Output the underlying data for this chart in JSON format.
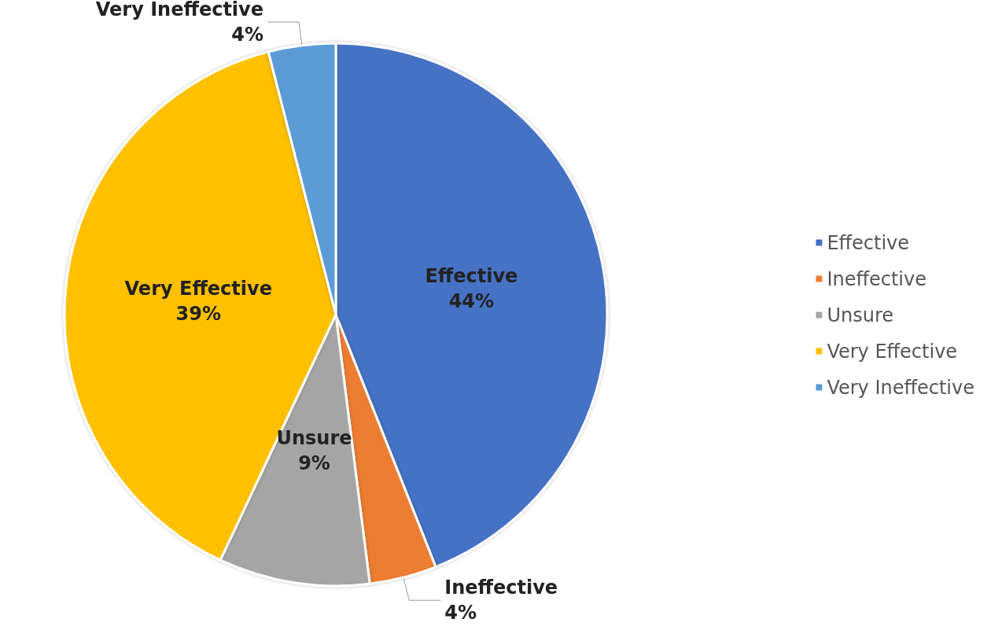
{
  "chart_data": {
    "type": "pie",
    "categories": [
      "Effective",
      "Ineffective",
      "Unsure",
      "Very Effective",
      "Very Ineffective"
    ],
    "values": [
      44,
      4,
      9,
      39,
      4
    ],
    "value_labels": [
      "44%",
      "4%",
      "9%",
      "39%",
      "4%"
    ],
    "colors": [
      "#4472c4",
      "#ed7d31",
      "#a5a5a5",
      "#ffc000",
      "#5b9bd5"
    ],
    "legend": "right"
  }
}
